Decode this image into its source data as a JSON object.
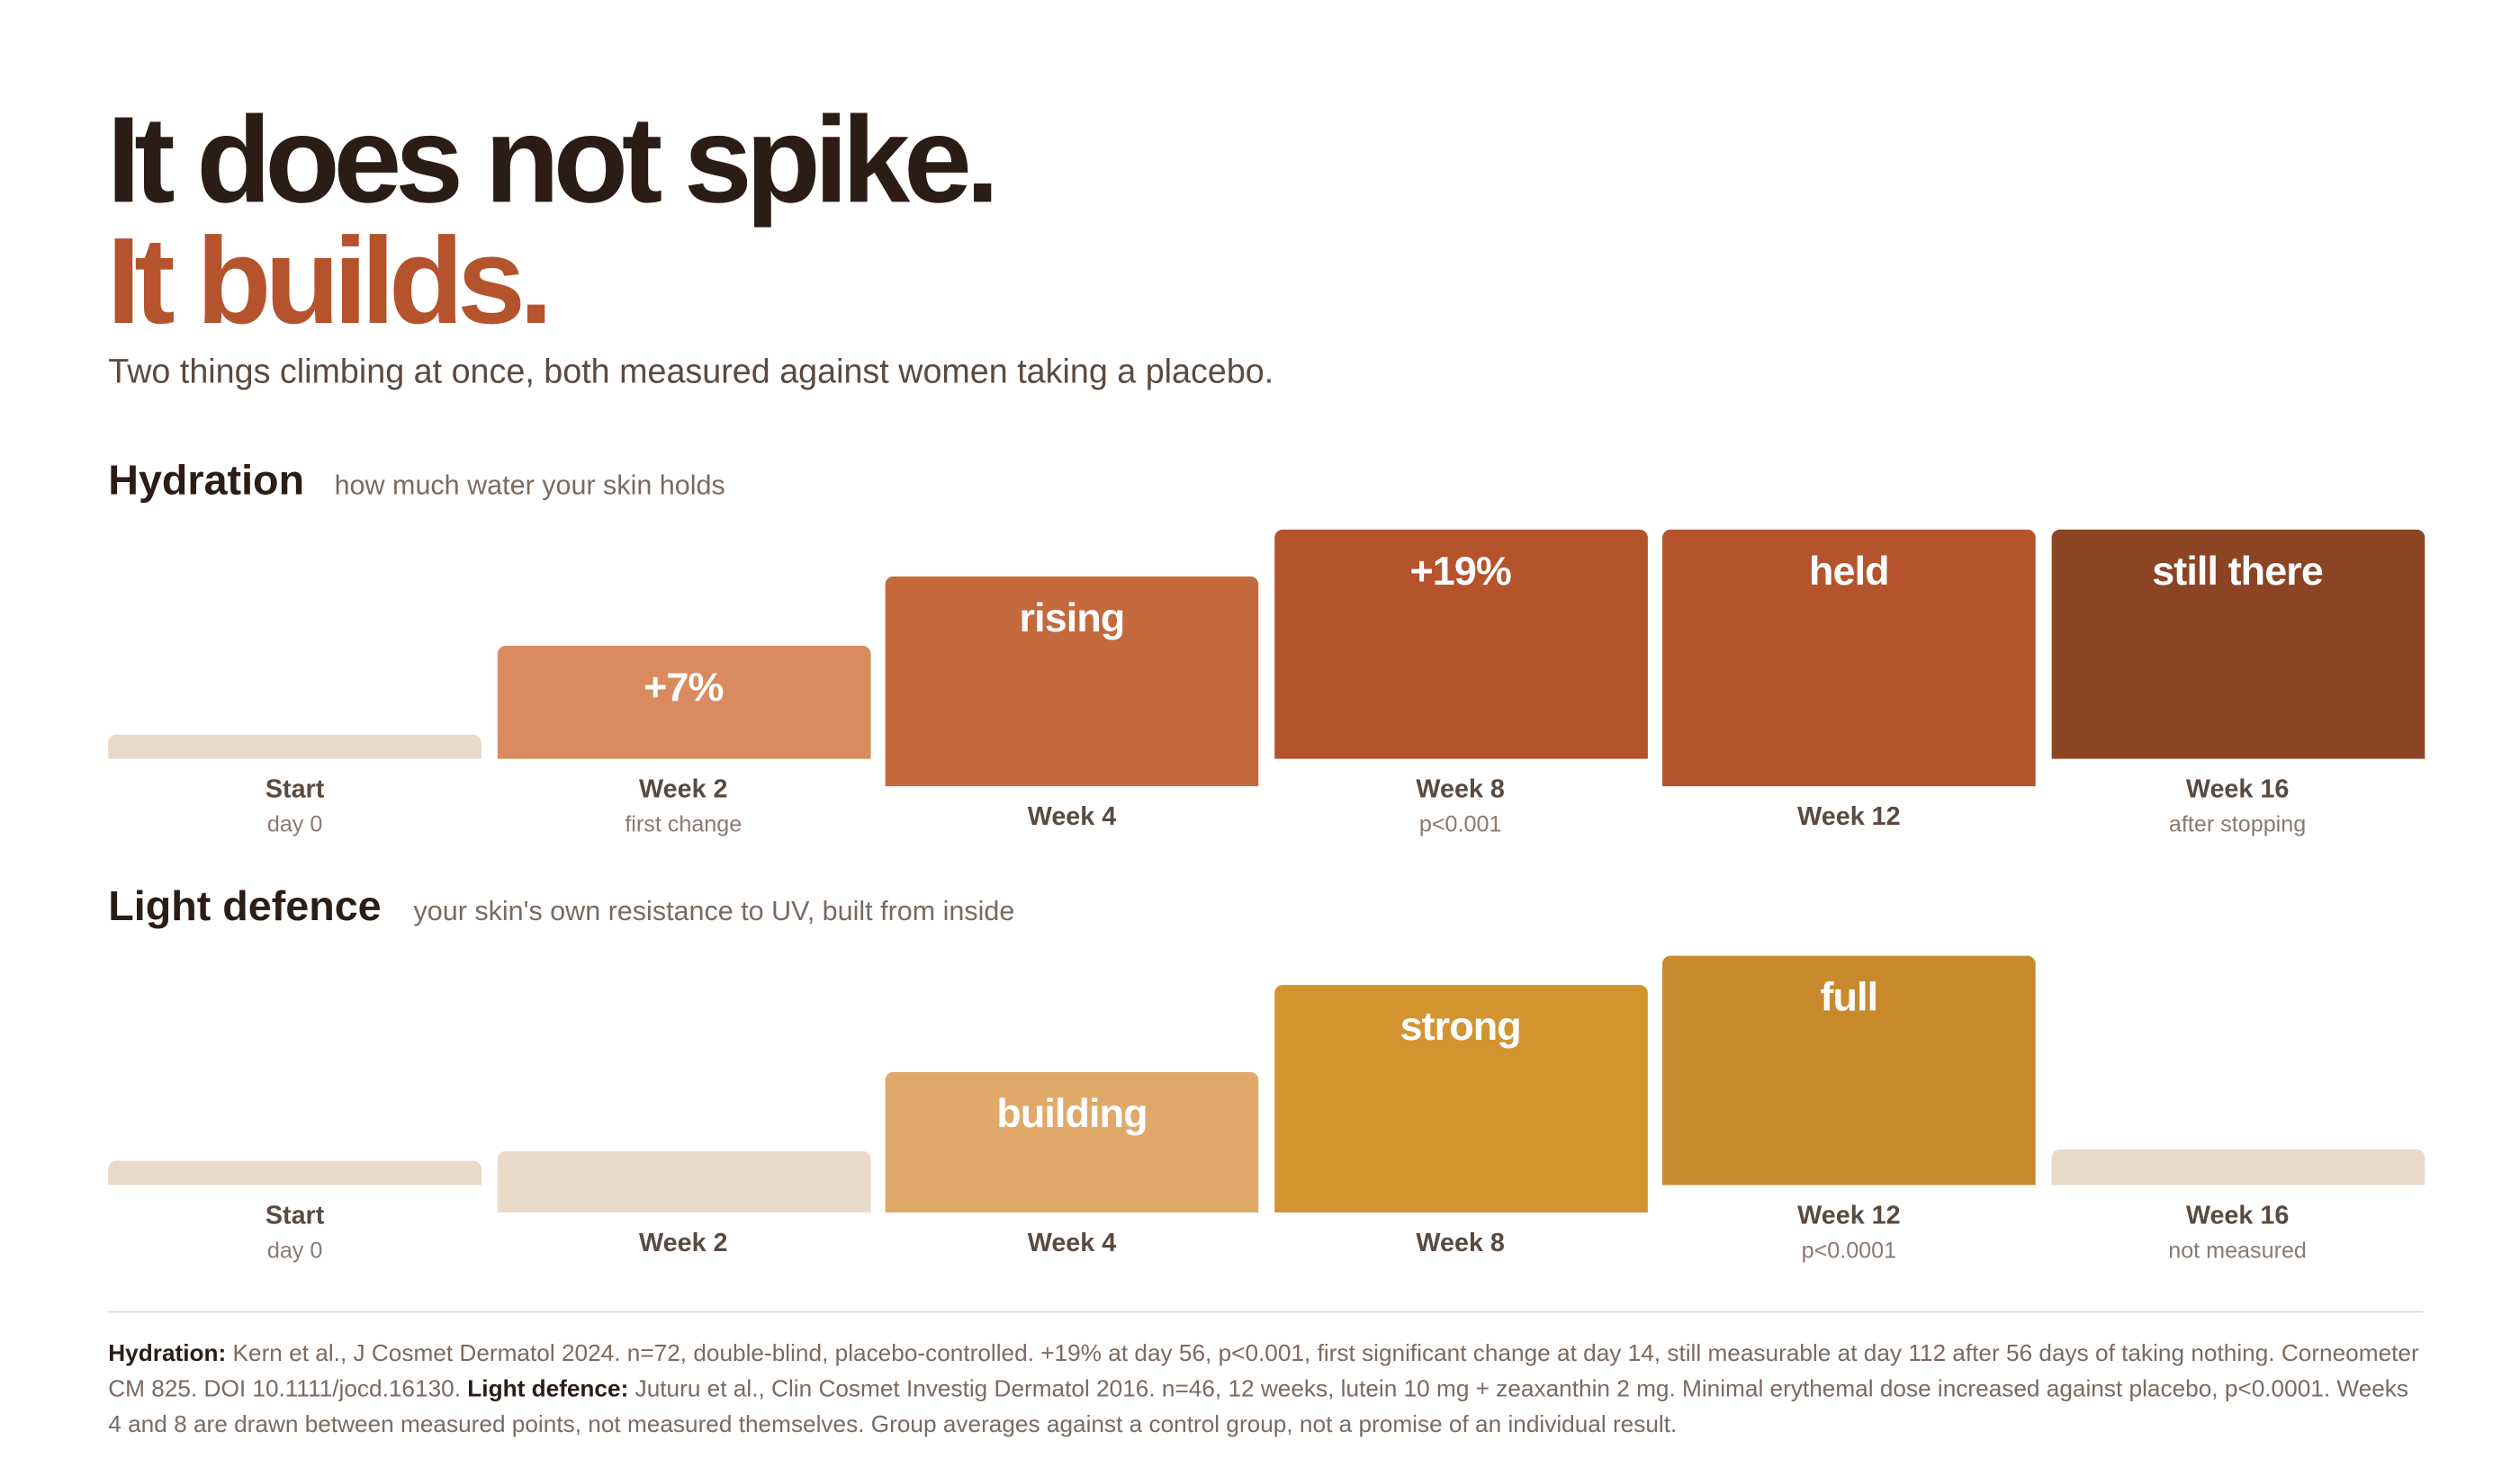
{
  "header": {
    "title_line1": "It does not spike.",
    "title_line2": "It builds.",
    "subtitle": "Two things climbing at once, both measured against women taking a placebo."
  },
  "panels": [
    {
      "title": "Hydration",
      "subtitle": "how much water your skin holds",
      "columns": [
        {
          "label": "Start",
          "sub": "day 0"
        },
        {
          "label": "Week 2",
          "sub": "first change",
          "tag": "+7%"
        },
        {
          "label": "Week 4",
          "tag": "rising"
        },
        {
          "label": "Week 8",
          "sub": "p<0.001",
          "tag": "+19%"
        },
        {
          "label": "Week 12",
          "tag": "held"
        },
        {
          "label": "Week 16",
          "sub": "after stopping",
          "tag": "still there"
        }
      ]
    },
    {
      "title": "Light defence",
      "subtitle": "your skin's own resistance to UV, built from inside",
      "columns": [
        {
          "label": "Start",
          "sub": "day 0"
        },
        {
          "label": "Week 2"
        },
        {
          "label": "Week 4",
          "tag": "building"
        },
        {
          "label": "Week 8",
          "tag": "strong"
        },
        {
          "label": "Week 12",
          "sub": "p<0.0001",
          "tag": "full"
        },
        {
          "label": "Week 16",
          "sub": "not measured"
        }
      ]
    }
  ],
  "footnote": [
    {
      "label": "Hydration:",
      "text": "Kern et al., J Cosmet Dermatol 2024. n=72, double-blind, placebo-controlled. +19% at day 56, p<0.001, first significant change at day 14, still measurable at day 112 after 56 days of taking nothing. Corneometer CM 825. DOI 10.1111/jocd.16130."
    },
    {
      "label": "Light defence:",
      "text": "Juturu et al., Clin Cosmet Investig Dermatol 2016. n=46, 12 weeks, lutein 10 mg + zeaxanthin 2 mg. Minimal erythemal dose increased against placebo, p<0.0001. Weeks 4 and 8 are drawn between measured points, not measured themselves. Group averages against a control group, not a promise of an individual result."
    }
  ]
}
